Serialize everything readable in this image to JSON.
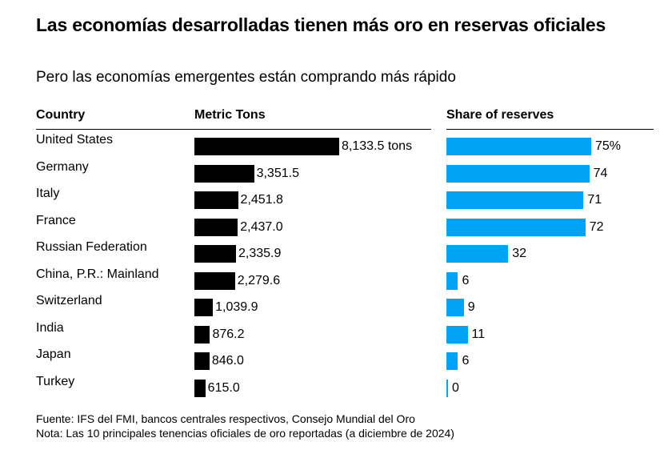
{
  "chart_data": {
    "type": "bar",
    "title": "Las economías desarrolladas tienen más oro en reservas oficiales",
    "subtitle": "Pero las economías emergentes están comprando más rápido",
    "column_headers": {
      "country": "Country",
      "tons": "Metric Tons",
      "share": "Share of reserves"
    },
    "categories": [
      "United States",
      "Germany",
      "Italy",
      "France",
      "Russian Federation",
      "China, P.R.: Mainland",
      "Switzerland",
      "India",
      "Japan",
      "Turkey"
    ],
    "series": [
      {
        "name": "Metric Tons",
        "values": [
          8133.5,
          3351.5,
          2451.8,
          2437.0,
          2335.9,
          2279.6,
          1039.9,
          876.2,
          846.0,
          615.0
        ],
        "labels": [
          "8,133.5 tons",
          "3,351.5",
          "2,451.8",
          "2,437.0",
          "2,335.9",
          "2,279.6",
          "1,039.9",
          "876.2",
          "846.0",
          "615.0"
        ],
        "color": "#000000",
        "xlim": [
          0,
          8133.5
        ]
      },
      {
        "name": "Share of reserves",
        "values": [
          75,
          74,
          71,
          72,
          32,
          6,
          9,
          11,
          6,
          0
        ],
        "labels": [
          "75%",
          "74",
          "71",
          "72",
          "32",
          "6",
          "9",
          "11",
          "6",
          "0"
        ],
        "color": "#00a3f5",
        "xlim": [
          0,
          75
        ]
      }
    ],
    "source": "Fuente: IFS del FMI, bancos centrales respectivos, Consejo Mundial del Oro",
    "note": "Nota: Las 10 principales tenencias oficiales de oro reportadas (a diciembre de 2024)"
  }
}
